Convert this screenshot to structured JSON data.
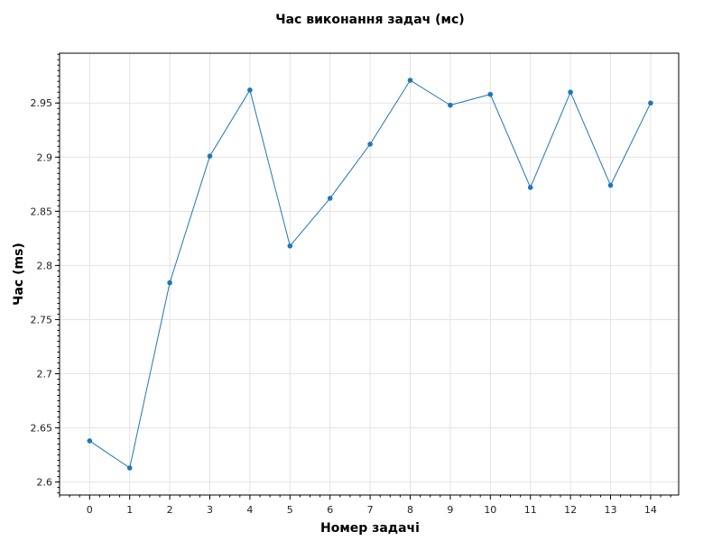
{
  "chart_data": {
    "type": "line",
    "title": "Час виконання задач (мс)",
    "xlabel": "Номер задачі",
    "ylabel": "Час (ms)",
    "x": [
      0,
      1,
      2,
      3,
      4,
      5,
      6,
      7,
      8,
      9,
      10,
      11,
      12,
      13,
      14
    ],
    "xlim": [
      -0.75,
      14.7
    ],
    "ylim": [
      2.588,
      2.996
    ],
    "x_ticks": [
      "0",
      "1",
      "2",
      "3",
      "4",
      "5",
      "6",
      "7",
      "8",
      "9",
      "10",
      "11",
      "12",
      "13",
      "14"
    ],
    "y_ticks": [
      2.6,
      2.65,
      2.7,
      2.75,
      2.8,
      2.85,
      2.9,
      2.95
    ],
    "y_tick_labels": [
      "2.6",
      "2.65",
      "2.7",
      "2.75",
      "2.8",
      "2.85",
      "2.9",
      "2.95"
    ],
    "grid": true,
    "legend": "none",
    "series": [
      {
        "color": "#1f77b4",
        "values": [
          2.638,
          2.613,
          2.784,
          2.901,
          2.962,
          2.818,
          2.862,
          2.912,
          2.971,
          2.948,
          2.958,
          2.872,
          2.96,
          2.874,
          2.95
        ]
      }
    ]
  }
}
